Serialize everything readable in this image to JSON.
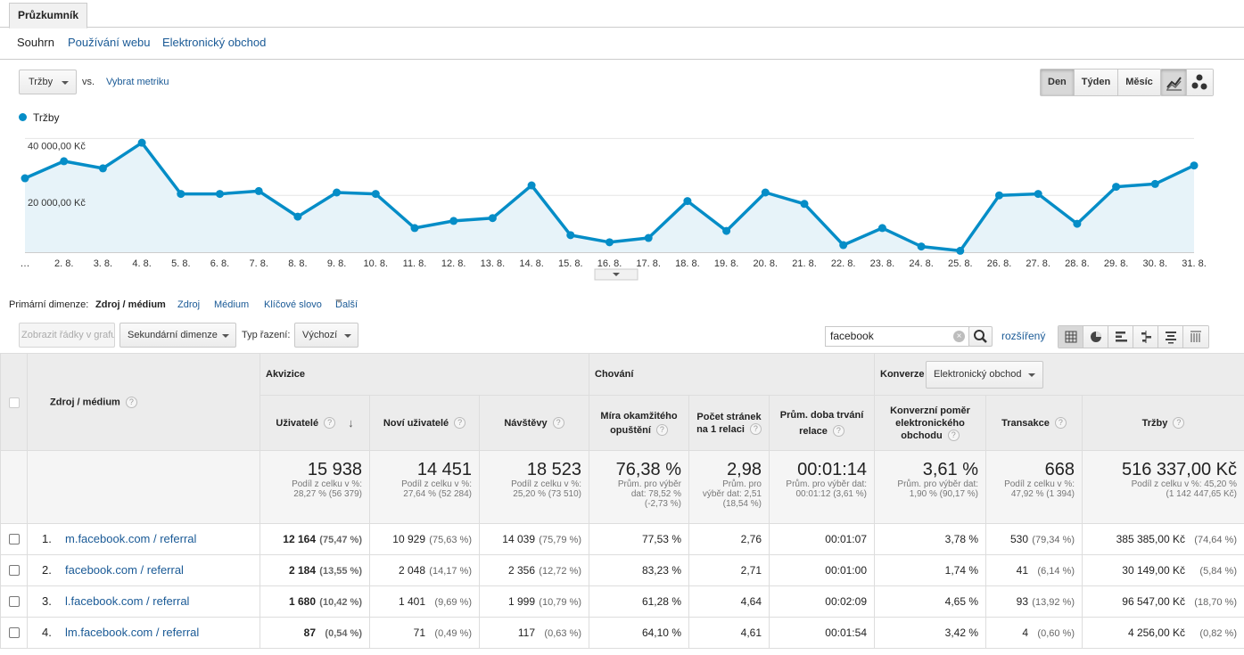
{
  "tabs": {
    "explorer": "Průzkumník"
  },
  "subnav": [
    "Souhrn",
    "Používání webu",
    "Elektronický obchod"
  ],
  "controls": {
    "metric": "Tržby",
    "vs": "vs.",
    "select_metric": "Vybrat metriku",
    "periods": [
      "Den",
      "Týden",
      "Měsíc"
    ],
    "active_period": "Den",
    "chart_types": [
      "line-chart-icon",
      "motion-chart-icon"
    ]
  },
  "chart_data": {
    "type": "area",
    "title": "",
    "xlabel": "",
    "ylabel": "",
    "series": [
      {
        "name": "Tržby",
        "color": "#058dc7",
        "values": [
          26000,
          32000,
          29500,
          38500,
          20500,
          20500,
          21500,
          12500,
          21000,
          20500,
          8500,
          11000,
          12000,
          23500,
          6000,
          3500,
          5000,
          18000,
          7500,
          21000,
          17000,
          2500,
          8500,
          2000,
          500,
          20000,
          20500,
          10000,
          23000,
          24000,
          30500
        ]
      }
    ],
    "categories": [
      "…",
      "2. 8.",
      "3. 8.",
      "4. 8.",
      "5. 8.",
      "6. 8.",
      "7. 8.",
      "8. 8.",
      "9. 8.",
      "10. 8.",
      "11. 8.",
      "12. 8.",
      "13. 8.",
      "14. 8.",
      "15. 8.",
      "16. 8.",
      "17. 8.",
      "18. 8.",
      "19. 8.",
      "20. 8.",
      "21. 8.",
      "22. 8.",
      "23. 8.",
      "24. 8.",
      "25. 8.",
      "26. 8.",
      "27. 8.",
      "28. 8.",
      "29. 8.",
      "30. 8.",
      "31. 8."
    ],
    "y_ticks": [
      "40 000,00 Kč",
      "20 000,00 Kč"
    ],
    "ylim": [
      0,
      40000
    ],
    "grid": true,
    "legend": "top-left"
  },
  "dimensions": {
    "label": "Primární dimenze:",
    "active": "Zdroj / médium",
    "others": [
      "Zdroj",
      "Médium",
      "Klíčové slovo"
    ],
    "more": "Další"
  },
  "toolbar": {
    "plot_rows": "Zobrazit řádky v grafu",
    "secondary_dim": "Sekundární dimenze",
    "sort_label": "Typ řazení:",
    "sort_value": "Výchozí",
    "search_value": "facebook",
    "extended": "rozšířený"
  },
  "table": {
    "dim_header": "Zdroj / médium",
    "groups": {
      "acquisition": "Akvizice",
      "behavior": "Chování",
      "conversions": "Konverze",
      "conversion_select": "Elektronický obchod"
    },
    "columns": [
      "Uživatelé",
      "Noví uživatelé",
      "Návštěvy",
      "Míra okamžitého opuštění",
      "Počet stránek na 1 relaci",
      "Prům. doba trvání relace",
      "Konverzní poměr elektronického obchodu",
      "Transakce",
      "Tržby"
    ],
    "totals": [
      {
        "value": "15 938",
        "sub1": "Podíl z celku v %:",
        "sub2": "28,27 % (56 379)"
      },
      {
        "value": "14 451",
        "sub1": "Podíl z celku v %:",
        "sub2": "27,64 % (52 284)"
      },
      {
        "value": "18 523",
        "sub1": "Podíl z celku v %:",
        "sub2": "25,20 % (73 510)"
      },
      {
        "value": "76,38 %",
        "sub1": "Prům. pro výběr",
        "sub2": "dat: 78,52 %",
        "sub3": "(-2,73 %)"
      },
      {
        "value": "2,98",
        "sub1": "Prům. pro",
        "sub2": "výběr dat: 2,51",
        "sub3": "(18,54 %)"
      },
      {
        "value": "00:01:14",
        "sub1": "Prům. pro výběr dat:",
        "sub2": "00:01:12 (3,61 %)"
      },
      {
        "value": "3,61 %",
        "sub1": "Prům. pro výběr dat:",
        "sub2": "1,90 % (90,17 %)"
      },
      {
        "value": "668",
        "sub1": "Podíl z celku v %:",
        "sub2": "47,92 % (1 394)"
      },
      {
        "value": "516 337,00 Kč",
        "sub1": "Podíl z celku v %: 45,20 %",
        "sub2": "(1 142 447,65 Kč)"
      }
    ],
    "rows": [
      {
        "num": "1.",
        "source": "m.facebook.com / referral",
        "users": "12 164",
        "users_pct": "(75,47 %)",
        "new_users": "10 929",
        "new_users_pct": "(75,63 %)",
        "sessions": "14 039",
        "sessions_pct": "(75,79 %)",
        "bounce": "77,53 %",
        "pages": "2,76",
        "duration": "00:01:07",
        "conv": "3,78 %",
        "trans": "530",
        "trans_pct": "(79,34 %)",
        "rev": "385 385,00 Kč",
        "rev_pct": "(74,64 %)"
      },
      {
        "num": "2.",
        "source": "facebook.com / referral",
        "users": "2 184",
        "users_pct": "(13,55 %)",
        "new_users": "2 048",
        "new_users_pct": "(14,17 %)",
        "sessions": "2 356",
        "sessions_pct": "(12,72 %)",
        "bounce": "83,23 %",
        "pages": "2,71",
        "duration": "00:01:00",
        "conv": "1,74 %",
        "trans": "41",
        "trans_pct": "(6,14 %)",
        "rev": "30 149,00 Kč",
        "rev_pct": "(5,84 %)"
      },
      {
        "num": "3.",
        "source": "l.facebook.com / referral",
        "users": "1 680",
        "users_pct": "(10,42 %)",
        "new_users": "1 401",
        "new_users_pct": "(9,69 %)",
        "sessions": "1 999",
        "sessions_pct": "(10,79 %)",
        "bounce": "61,28 %",
        "pages": "4,64",
        "duration": "00:02:09",
        "conv": "4,65 %",
        "trans": "93",
        "trans_pct": "(13,92 %)",
        "rev": "96 547,00 Kč",
        "rev_pct": "(18,70 %)"
      },
      {
        "num": "4.",
        "source": "lm.facebook.com / referral",
        "users": "87",
        "users_pct": "(0,54 %)",
        "new_users": "71",
        "new_users_pct": "(0,49 %)",
        "sessions": "117",
        "sessions_pct": "(0,63 %)",
        "bounce": "64,10 %",
        "pages": "4,61",
        "duration": "00:01:54",
        "conv": "3,42 %",
        "trans": "4",
        "trans_pct": "(0,60 %)",
        "rev": "4 256,00 Kč",
        "rev_pct": "(0,82 %)"
      }
    ]
  }
}
